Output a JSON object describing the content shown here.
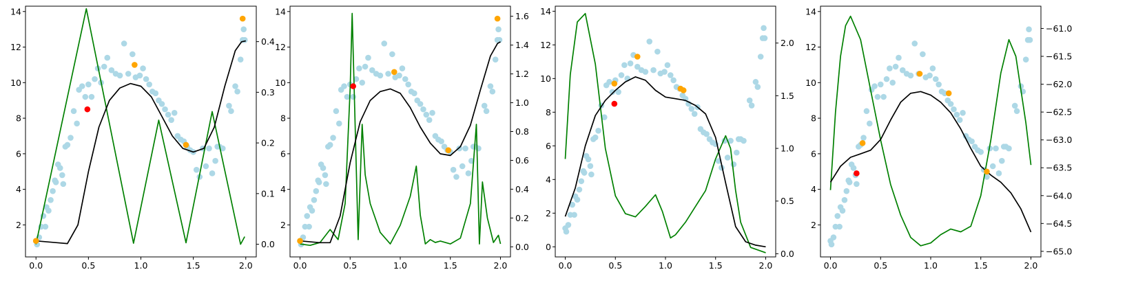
{
  "chart_data": [
    {
      "type": "line",
      "xlim": [
        -0.1,
        2.1
      ],
      "ylim": [
        0.2,
        14.3
      ],
      "y2lim": [
        -0.025,
        0.47
      ],
      "xticks": [
        0.0,
        0.5,
        1.0,
        1.5,
        2.0
      ],
      "xtick_labels": [
        "0.0",
        "0.5",
        "1.0",
        "1.5",
        "2.0"
      ],
      "yticks": [
        2,
        4,
        6,
        8,
        10,
        12,
        14
      ],
      "ytick_labels": [
        "2",
        "4",
        "6",
        "8",
        "10",
        "12",
        "14"
      ],
      "y2ticks": [
        0.0,
        0.1,
        0.2,
        0.3,
        0.4
      ],
      "y2tick_labels": [
        "0.0",
        "0.1",
        "0.2",
        "0.3",
        "0.4"
      ],
      "black_curve": [
        [
          0.0,
          1.1
        ],
        [
          0.2,
          1.0
        ],
        [
          0.3,
          0.95
        ],
        [
          0.4,
          2.0
        ],
        [
          0.5,
          5.0
        ],
        [
          0.6,
          7.5
        ],
        [
          0.7,
          9.0
        ],
        [
          0.8,
          9.7
        ],
        [
          0.9,
          9.95
        ],
        [
          1.0,
          9.8
        ],
        [
          1.1,
          9.2
        ],
        [
          1.2,
          8.1
        ],
        [
          1.3,
          7.0
        ],
        [
          1.4,
          6.3
        ],
        [
          1.5,
          6.1
        ],
        [
          1.6,
          6.3
        ],
        [
          1.7,
          7.5
        ],
        [
          1.8,
          9.8
        ],
        [
          1.9,
          11.8
        ],
        [
          1.96,
          12.3
        ],
        [
          2.0,
          12.35
        ]
      ],
      "green_curve": [
        [
          0.0,
          0.0
        ],
        [
          0.48,
          0.465
        ],
        [
          0.93,
          0.002
        ],
        [
          1.17,
          0.245
        ],
        [
          1.43,
          0.003
        ],
        [
          1.68,
          0.262
        ],
        [
          1.95,
          0.0
        ],
        [
          1.99,
          0.015
        ]
      ],
      "red_points": [
        [
          0.49,
          8.5
        ]
      ],
      "orange_points": [
        [
          0.0,
          1.1
        ],
        [
          0.94,
          11.0
        ],
        [
          1.43,
          6.5
        ],
        [
          1.97,
          13.6
        ]
      ]
    },
    {
      "type": "line",
      "xlim": [
        -0.1,
        2.1
      ],
      "ylim": [
        0.2,
        14.3
      ],
      "y2lim": [
        -0.07,
        1.67
      ],
      "xticks": [
        0.0,
        0.5,
        1.0,
        1.5,
        2.0
      ],
      "xtick_labels": [
        "0.0",
        "0.5",
        "1.0",
        "1.5",
        "2.0"
      ],
      "yticks": [
        2,
        4,
        6,
        8,
        10,
        12,
        14
      ],
      "ytick_labels": [
        "2",
        "4",
        "6",
        "8",
        "10",
        "12",
        "14"
      ],
      "y2ticks": [
        0.0,
        0.2,
        0.4,
        0.6,
        0.8,
        1.0,
        1.2,
        1.4,
        1.6
      ],
      "y2tick_labels": [
        "0.0",
        "0.2",
        "0.4",
        "0.6",
        "0.8",
        "1.0",
        "1.2",
        "1.4",
        "1.6"
      ],
      "black_curve": [
        [
          0.0,
          1.1
        ],
        [
          0.2,
          1.0
        ],
        [
          0.3,
          1.0
        ],
        [
          0.4,
          2.5
        ],
        [
          0.5,
          5.5
        ],
        [
          0.6,
          7.8
        ],
        [
          0.7,
          9.0
        ],
        [
          0.8,
          9.5
        ],
        [
          0.9,
          9.65
        ],
        [
          1.0,
          9.4
        ],
        [
          1.1,
          8.6
        ],
        [
          1.2,
          7.5
        ],
        [
          1.3,
          6.6
        ],
        [
          1.4,
          6.0
        ],
        [
          1.5,
          5.9
        ],
        [
          1.6,
          6.4
        ],
        [
          1.7,
          7.6
        ],
        [
          1.8,
          9.6
        ],
        [
          1.9,
          11.5
        ],
        [
          1.97,
          12.2
        ],
        [
          2.0,
          12.3
        ]
      ],
      "green_curve": [
        [
          0.0,
          0.02
        ],
        [
          0.1,
          0.01
        ],
        [
          0.2,
          0.03
        ],
        [
          0.3,
          0.12
        ],
        [
          0.38,
          0.05
        ],
        [
          0.45,
          0.3
        ],
        [
          0.5,
          1.1
        ],
        [
          0.52,
          1.62
        ],
        [
          0.54,
          1.1
        ],
        [
          0.58,
          0.05
        ],
        [
          0.62,
          0.85
        ],
        [
          0.65,
          0.5
        ],
        [
          0.7,
          0.3
        ],
        [
          0.8,
          0.1
        ],
        [
          0.9,
          0.02
        ],
        [
          1.0,
          0.15
        ],
        [
          1.1,
          0.35
        ],
        [
          1.16,
          0.56
        ],
        [
          1.2,
          0.22
        ],
        [
          1.25,
          0.02
        ],
        [
          1.3,
          0.05
        ],
        [
          1.35,
          0.03
        ],
        [
          1.4,
          0.04
        ],
        [
          1.5,
          0.02
        ],
        [
          1.6,
          0.06
        ],
        [
          1.7,
          0.3
        ],
        [
          1.76,
          0.85
        ],
        [
          1.79,
          0.02
        ],
        [
          1.82,
          0.45
        ],
        [
          1.87,
          0.2
        ],
        [
          1.93,
          0.03
        ],
        [
          1.98,
          0.08
        ],
        [
          2.0,
          0.02
        ]
      ],
      "red_points": [
        [
          0.53,
          9.8
        ]
      ],
      "orange_points": [
        [
          0.0,
          1.1
        ],
        [
          0.94,
          10.6
        ],
        [
          1.48,
          6.2
        ],
        [
          1.97,
          13.6
        ]
      ]
    },
    {
      "type": "line",
      "xlim": [
        -0.1,
        2.1
      ],
      "ylim": [
        -0.6,
        14.3
      ],
      "y2lim": [
        -0.03,
        2.35
      ],
      "xticks": [
        0.0,
        0.5,
        1.0,
        1.5,
        2.0
      ],
      "xtick_labels": [
        "0.0",
        "0.5",
        "1.0",
        "1.5",
        "2.0"
      ],
      "yticks": [
        0,
        2,
        4,
        6,
        8,
        10,
        12,
        14
      ],
      "ytick_labels": [
        "0",
        "2",
        "4",
        "6",
        "8",
        "10",
        "12",
        "14"
      ],
      "y2ticks": [
        0.0,
        0.5,
        1.0,
        1.5,
        2.0
      ],
      "y2tick_labels": [
        "0.0",
        "0.5",
        "1.0",
        "1.5",
        "2.0"
      ],
      "black_curve": [
        [
          0.0,
          1.8
        ],
        [
          0.1,
          3.5
        ],
        [
          0.2,
          6.0
        ],
        [
          0.3,
          7.8
        ],
        [
          0.4,
          8.7
        ],
        [
          0.5,
          9.3
        ],
        [
          0.6,
          9.8
        ],
        [
          0.7,
          10.1
        ],
        [
          0.8,
          9.9
        ],
        [
          0.9,
          9.3
        ],
        [
          1.0,
          8.9
        ],
        [
          1.1,
          8.8
        ],
        [
          1.2,
          8.7
        ],
        [
          1.3,
          8.4
        ],
        [
          1.4,
          7.9
        ],
        [
          1.5,
          6.5
        ],
        [
          1.6,
          3.8
        ],
        [
          1.7,
          1.2
        ],
        [
          1.8,
          0.3
        ],
        [
          1.9,
          0.1
        ],
        [
          2.0,
          0.0
        ]
      ],
      "green_curve": [
        [
          0.0,
          0.9
        ],
        [
          0.05,
          1.7
        ],
        [
          0.12,
          2.2
        ],
        [
          0.2,
          2.28
        ],
        [
          0.3,
          1.8
        ],
        [
          0.4,
          1.0
        ],
        [
          0.5,
          0.55
        ],
        [
          0.6,
          0.38
        ],
        [
          0.7,
          0.35
        ],
        [
          0.8,
          0.45
        ],
        [
          0.9,
          0.56
        ],
        [
          0.97,
          0.4
        ],
        [
          1.05,
          0.15
        ],
        [
          1.1,
          0.18
        ],
        [
          1.2,
          0.3
        ],
        [
          1.3,
          0.45
        ],
        [
          1.4,
          0.6
        ],
        [
          1.5,
          0.9
        ],
        [
          1.6,
          1.12
        ],
        [
          1.65,
          1.0
        ],
        [
          1.7,
          0.6
        ],
        [
          1.75,
          0.3
        ],
        [
          1.85,
          0.06
        ],
        [
          2.0,
          0.01
        ]
      ],
      "red_points": [
        [
          0.49,
          8.5
        ]
      ],
      "orange_points": [
        [
          0.49,
          9.7
        ],
        [
          0.72,
          11.3
        ],
        [
          1.15,
          9.4
        ],
        [
          1.18,
          9.3
        ]
      ]
    },
    {
      "type": "line",
      "xlim": [
        -0.1,
        2.1
      ],
      "ylim": [
        0.2,
        14.3
      ],
      "y2lim": [
        -65.1,
        -60.6
      ],
      "xticks": [
        0.0,
        0.5,
        1.0,
        1.5,
        2.0
      ],
      "xtick_labels": [
        "0.0",
        "0.5",
        "1.0",
        "1.5",
        "2.0"
      ],
      "yticks": [
        2,
        4,
        6,
        8,
        10,
        12,
        14
      ],
      "ytick_labels": [
        "2",
        "4",
        "6",
        "8",
        "10",
        "12",
        "14"
      ],
      "y2ticks": [
        -65.0,
        -64.5,
        -64.0,
        -63.5,
        -63.0,
        -62.5,
        -62.0,
        -61.5,
        -61.0
      ],
      "y2tick_labels": [
        "−65.0",
        "−64.5",
        "−64.0",
        "−63.5",
        "−63.0",
        "−62.5",
        "−62.0",
        "−61.5",
        "−61.0"
      ],
      "black_curve": [
        [
          0.0,
          4.4
        ],
        [
          0.1,
          5.3
        ],
        [
          0.2,
          5.8
        ],
        [
          0.3,
          6.0
        ],
        [
          0.4,
          6.2
        ],
        [
          0.5,
          6.8
        ],
        [
          0.6,
          7.9
        ],
        [
          0.7,
          8.9
        ],
        [
          0.8,
          9.4
        ],
        [
          0.9,
          9.5
        ],
        [
          1.0,
          9.3
        ],
        [
          1.1,
          8.9
        ],
        [
          1.2,
          8.3
        ],
        [
          1.3,
          7.4
        ],
        [
          1.4,
          6.3
        ],
        [
          1.5,
          5.3
        ],
        [
          1.6,
          4.8
        ],
        [
          1.7,
          4.4
        ],
        [
          1.8,
          3.8
        ],
        [
          1.9,
          2.9
        ],
        [
          2.0,
          1.6
        ]
      ],
      "green_curve": [
        [
          0.0,
          -63.9
        ],
        [
          0.05,
          -62.5
        ],
        [
          0.1,
          -61.5
        ],
        [
          0.15,
          -60.95
        ],
        [
          0.2,
          -60.78
        ],
        [
          0.3,
          -61.2
        ],
        [
          0.4,
          -62.1
        ],
        [
          0.5,
          -63.0
        ],
        [
          0.6,
          -63.8
        ],
        [
          0.7,
          -64.35
        ],
        [
          0.8,
          -64.75
        ],
        [
          0.9,
          -64.9
        ],
        [
          1.0,
          -64.85
        ],
        [
          1.1,
          -64.7
        ],
        [
          1.2,
          -64.6
        ],
        [
          1.3,
          -64.65
        ],
        [
          1.4,
          -64.55
        ],
        [
          1.5,
          -64.0
        ],
        [
          1.6,
          -63.0
        ],
        [
          1.7,
          -61.8
        ],
        [
          1.78,
          -61.2
        ],
        [
          1.85,
          -61.5
        ],
        [
          1.95,
          -62.7
        ],
        [
          2.0,
          -63.45
        ]
      ],
      "red_points": [
        [
          0.26,
          4.9
        ]
      ],
      "orange_points": [
        [
          0.32,
          6.6
        ],
        [
          0.89,
          10.5
        ],
        [
          1.18,
          9.4
        ],
        [
          1.56,
          5.0
        ]
      ]
    }
  ],
  "observations": [
    [
      0.0,
      1.1
    ],
    [
      0.01,
      0.9
    ],
    [
      0.03,
      1.3
    ],
    [
      0.05,
      1.9
    ],
    [
      0.07,
      2.5
    ],
    [
      0.09,
      1.9
    ],
    [
      0.1,
      3.0
    ],
    [
      0.12,
      2.8
    ],
    [
      0.14,
      3.4
    ],
    [
      0.16,
      3.9
    ],
    [
      0.18,
      4.5
    ],
    [
      0.19,
      4.4
    ],
    [
      0.21,
      5.4
    ],
    [
      0.23,
      5.2
    ],
    [
      0.25,
      4.8
    ],
    [
      0.26,
      4.3
    ],
    [
      0.28,
      6.4
    ],
    [
      0.3,
      6.5
    ],
    [
      0.33,
      6.9
    ],
    [
      0.36,
      8.4
    ],
    [
      0.39,
      7.7
    ],
    [
      0.41,
      9.6
    ],
    [
      0.44,
      9.8
    ],
    [
      0.47,
      9.2
    ],
    [
      0.5,
      9.9
    ],
    [
      0.53,
      9.2
    ],
    [
      0.56,
      10.2
    ],
    [
      0.59,
      10.8
    ],
    [
      0.62,
      10.0
    ],
    [
      0.65,
      10.9
    ],
    [
      0.68,
      11.4
    ],
    [
      0.72,
      10.7
    ],
    [
      0.76,
      10.5
    ],
    [
      0.8,
      10.4
    ],
    [
      0.84,
      12.2
    ],
    [
      0.88,
      10.5
    ],
    [
      0.92,
      11.6
    ],
    [
      0.95,
      10.3
    ],
    [
      0.99,
      10.4
    ],
    [
      1.02,
      10.8
    ],
    [
      1.05,
      10.2
    ],
    [
      1.08,
      9.9
    ],
    [
      1.11,
      9.5
    ],
    [
      1.14,
      9.4
    ],
    [
      1.17,
      9.0
    ],
    [
      1.2,
      8.8
    ],
    [
      1.23,
      8.5
    ],
    [
      1.26,
      8.2
    ],
    [
      1.29,
      7.9
    ],
    [
      1.32,
      8.3
    ],
    [
      1.35,
      7.0
    ],
    [
      1.38,
      6.8
    ],
    [
      1.41,
      6.7
    ],
    [
      1.44,
      6.4
    ],
    [
      1.47,
      6.2
    ],
    [
      1.5,
      6.1
    ],
    [
      1.53,
      5.1
    ],
    [
      1.56,
      4.7
    ],
    [
      1.59,
      6.3
    ],
    [
      1.62,
      5.3
    ],
    [
      1.65,
      6.3
    ],
    [
      1.68,
      4.9
    ],
    [
      1.71,
      5.6
    ],
    [
      1.73,
      6.4
    ],
    [
      1.75,
      6.4
    ],
    [
      1.78,
      6.3
    ],
    [
      1.84,
      8.7
    ],
    [
      1.86,
      8.4
    ],
    [
      1.9,
      9.8
    ],
    [
      1.92,
      9.5
    ],
    [
      1.95,
      11.3
    ],
    [
      1.97,
      12.4
    ],
    [
      1.98,
      13.0
    ],
    [
      1.99,
      12.4
    ]
  ]
}
